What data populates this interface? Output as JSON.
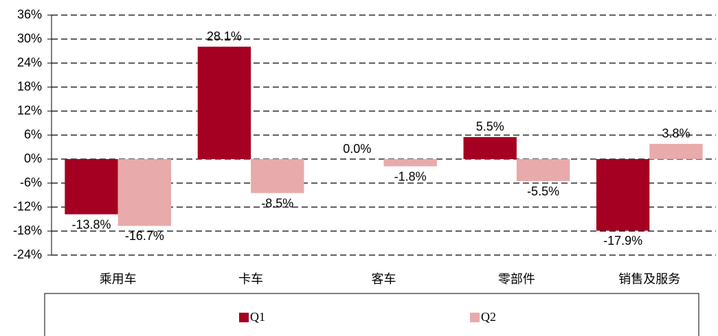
{
  "chart_data": {
    "type": "bar",
    "categories": [
      "乘用车",
      "卡车",
      "客车",
      "零部件",
      "销售及服务"
    ],
    "series": [
      {
        "name": "Q1",
        "color": "#a50021",
        "values": [
          -13.8,
          28.1,
          0.0,
          5.5,
          -17.9
        ],
        "value_labels": [
          "-13.8%",
          "28.1%",
          "0.0%",
          "5.5%",
          "-17.9%"
        ]
      },
      {
        "name": "Q2",
        "color": "#e8aaaa",
        "values": [
          -16.7,
          -8.5,
          -1.8,
          -5.5,
          3.8
        ],
        "value_labels": [
          "-16.7%",
          "-8.5%",
          "-1.8%",
          "-5.5%",
          "3.8%"
        ]
      }
    ],
    "ylim": [
      -24,
      36
    ],
    "yticks": [
      {
        "value": -24,
        "label": "-24%"
      },
      {
        "value": -18,
        "label": "-18%"
      },
      {
        "value": -12,
        "label": "-12%"
      },
      {
        "value": -6,
        "label": "-6%"
      },
      {
        "value": 0,
        "label": "0%"
      },
      {
        "value": 6,
        "label": "6%"
      },
      {
        "value": 12,
        "label": "12%"
      },
      {
        "value": 18,
        "label": "18%"
      },
      {
        "value": 24,
        "label": "24%"
      },
      {
        "value": 30,
        "label": "30%"
      },
      {
        "value": 36,
        "label": "36%"
      }
    ],
    "grid": true,
    "legend": "bottom"
  }
}
